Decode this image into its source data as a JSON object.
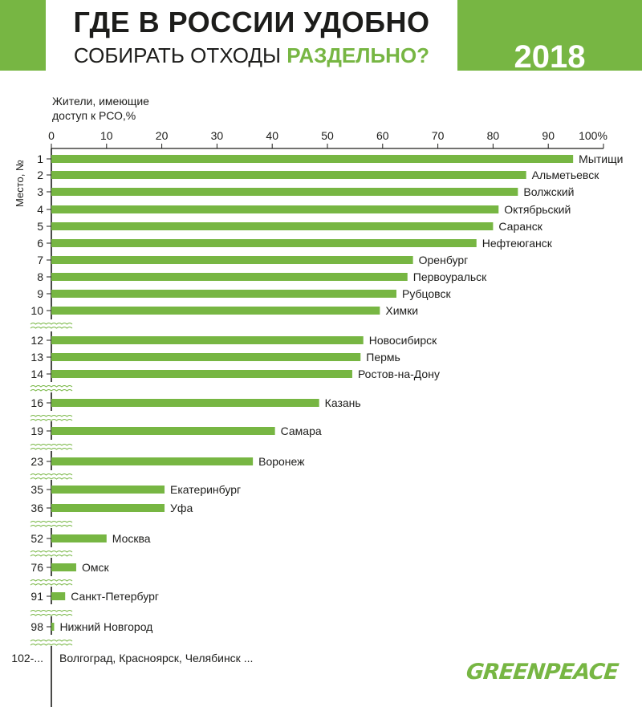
{
  "header": {
    "title_line1": "ГДЕ В РОССИИ УДОБНО",
    "title_line2_pre": "СОБИРАТЬ ОТХОДЫ ",
    "title_line2_highlight": "РАЗДЕЛЬНО?",
    "year": "2018",
    "accent_color": "#77b643"
  },
  "axis_title": "Жители, имеющие\nдоступ к РСО,%",
  "rank_axis_title": "Место, №",
  "logo_text": "GREENPEACE",
  "chart_data": {
    "type": "bar",
    "orientation": "horizontal",
    "xlim": [
      0,
      100
    ],
    "x_ticks": [
      "0",
      "10",
      "20",
      "30",
      "40",
      "50",
      "60",
      "70",
      "80",
      "90",
      "100%"
    ],
    "bar_color": "#77b643",
    "rows": [
      {
        "rank": "1",
        "city": "Мытищи",
        "value": 94.5
      },
      {
        "rank": "2",
        "city": "Альметьевск",
        "value": 86
      },
      {
        "rank": "3",
        "city": "Волжский",
        "value": 84.5
      },
      {
        "rank": "4",
        "city": "Октябрьский",
        "value": 81
      },
      {
        "rank": "5",
        "city": "Саранск",
        "value": 80
      },
      {
        "rank": "6",
        "city": "Нефтеюганск",
        "value": 77
      },
      {
        "rank": "7",
        "city": "Оренбург",
        "value": 65.5
      },
      {
        "rank": "8",
        "city": "Первоуральск",
        "value": 64.5
      },
      {
        "rank": "9",
        "city": "Рубцовск",
        "value": 62.5
      },
      {
        "rank": "10",
        "city": "Химки",
        "value": 59.5
      },
      {
        "rank": "12",
        "city": "Новосибирск",
        "value": 56.5
      },
      {
        "rank": "13",
        "city": "Пермь",
        "value": 56
      },
      {
        "rank": "14",
        "city": "Ростов-на-Дону",
        "value": 54.5
      },
      {
        "rank": "16",
        "city": "Казань",
        "value": 48.5
      },
      {
        "rank": "19",
        "city": "Самара",
        "value": 40.5
      },
      {
        "rank": "23",
        "city": "Воронеж",
        "value": 36.5
      },
      {
        "rank": "35",
        "city": "Екатеринбург",
        "value": 20.5
      },
      {
        "rank": "36",
        "city": "Уфа",
        "value": 20.5
      },
      {
        "rank": "52",
        "city": "Москва",
        "value": 10
      },
      {
        "rank": "76",
        "city": "Омск",
        "value": 4.5
      },
      {
        "rank": "91",
        "city": "Санкт-Петербург",
        "value": 2.5
      },
      {
        "rank": "98",
        "city": "Нижний Новгород",
        "value": 0.5
      },
      {
        "rank": "102-...",
        "city": "Волгоград, Красноярск, Челябинск ...",
        "value": 0
      }
    ]
  }
}
